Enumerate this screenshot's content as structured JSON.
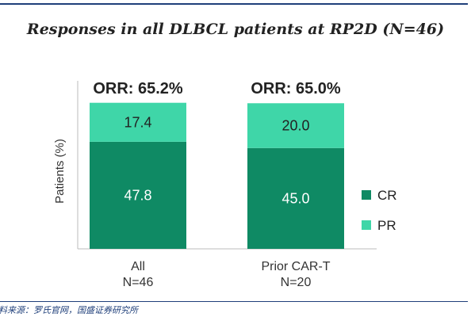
{
  "chart_data": {
    "type": "bar",
    "stacked": true,
    "title": "Responses in all DLBCL patients at RP2D (N=46)",
    "ylabel": "Patients (%)",
    "ylim": [
      0,
      75
    ],
    "categories": [
      {
        "name": "All",
        "n": "N=46"
      },
      {
        "name": "Prior CAR-T",
        "n": "N=20"
      }
    ],
    "orr_labels": [
      "ORR: 65.2%",
      "ORR: 65.0%"
    ],
    "series": [
      {
        "name": "CR",
        "values": [
          47.8,
          45.0
        ],
        "labels": [
          "47.8",
          "45.0"
        ],
        "color": "#0f8a64"
      },
      {
        "name": "PR",
        "values": [
          17.4,
          20.0
        ],
        "labels": [
          "17.4",
          "20.0"
        ],
        "color": "#3fd6a8"
      }
    ],
    "legend_position": "right",
    "grid": false
  },
  "footer": {
    "source": "料来源：罗氏官网，国盛证券研究所"
  }
}
